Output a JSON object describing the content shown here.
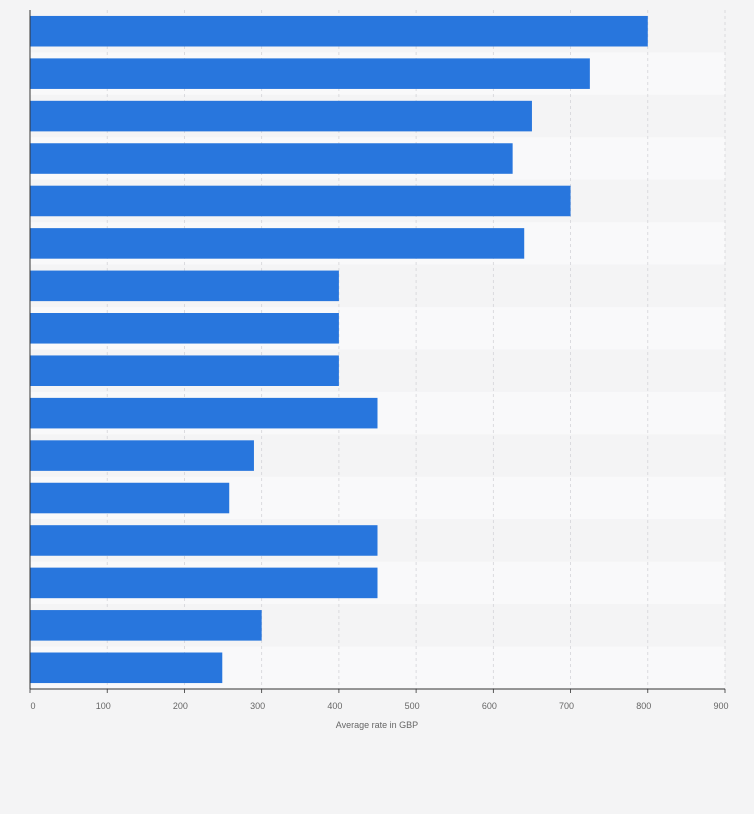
{
  "chart_data": {
    "type": "bar",
    "orientation": "horizontal",
    "title": "",
    "xlabel": "Average rate in GBP",
    "ylabel": "",
    "categories": [
      "",
      "",
      "",
      "",
      "",
      "",
      "",
      "",
      "",
      "",
      "",
      "",
      "",
      "",
      "",
      ""
    ],
    "values": [
      800,
      725,
      650,
      625,
      700,
      640,
      400,
      400,
      400,
      450,
      290,
      258,
      450,
      450,
      300,
      249
    ],
    "xlim": [
      0,
      900
    ],
    "xticks": [
      0,
      100,
      200,
      300,
      400,
      500,
      600,
      700,
      800,
      900
    ],
    "grid": true,
    "bar_color": "#2876dd",
    "band_colors": [
      "#f4f4f5",
      "#f9f9fa"
    ],
    "gridline_color": "#d4d4d8",
    "axis_color": "#333333",
    "tick_label_color": "#666666"
  }
}
